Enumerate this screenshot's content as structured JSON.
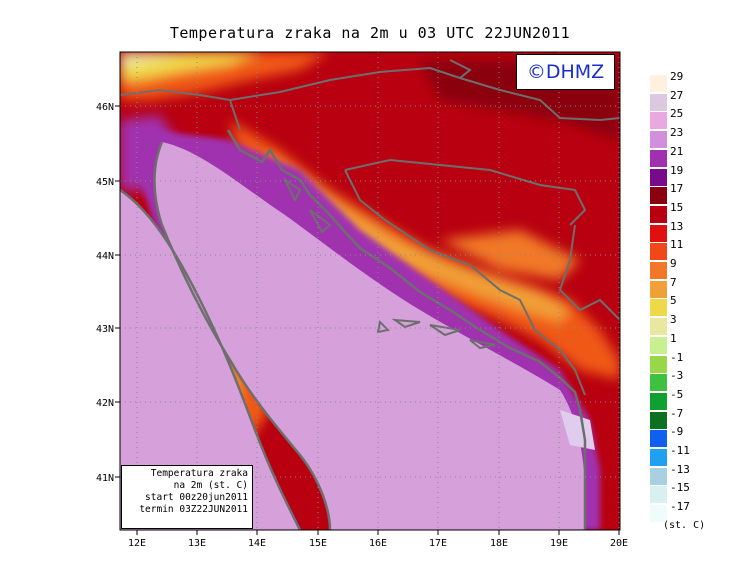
{
  "title": "Temperatura zraka na 2m u 03 UTC 22JUN2011",
  "logo_text": "©DHMZ",
  "info_box": [
    "Temperatura zraka",
    "na 2m (st. C)",
    "start 00z20jun2011",
    "termin 03Z22JUN2011"
  ],
  "lon_labels": [
    "12E",
    "13E",
    "14E",
    "15E",
    "16E",
    "17E",
    "18E",
    "19E",
    "20E"
  ],
  "lat_labels": [
    "46N",
    "45N",
    "44N",
    "43N",
    "42N",
    "41N"
  ],
  "legend": {
    "unit": "(st. C)",
    "levels": [
      "29",
      "27",
      "25",
      "23",
      "21",
      "19",
      "17",
      "15",
      "13",
      "11",
      "9",
      "7",
      "5",
      "3",
      "1",
      "-1",
      "-3",
      "-5",
      "-7",
      "-9",
      "-11",
      "-13",
      "-15",
      "-17"
    ],
    "colors": [
      "#fff0e0",
      "#dcc8e0",
      "#e8a8e0",
      "#d090dc",
      "#a030b0",
      "#780a8c",
      "#8a0010",
      "#b80010",
      "#e01010",
      "#f04818",
      "#f07828",
      "#f0a038",
      "#f0d848",
      "#e8e8a0",
      "#c8f090",
      "#98d848",
      "#40c040",
      "#10a030",
      "#0c7020",
      "#1060f0",
      "#20a0f0",
      "#a8d0e0",
      "#d8f0f0",
      "#f0fcfc"
    ]
  },
  "colors": {
    "sea": "#d6a0da",
    "coast": "#6e6e6e",
    "grid": "#8a8a8a"
  }
}
